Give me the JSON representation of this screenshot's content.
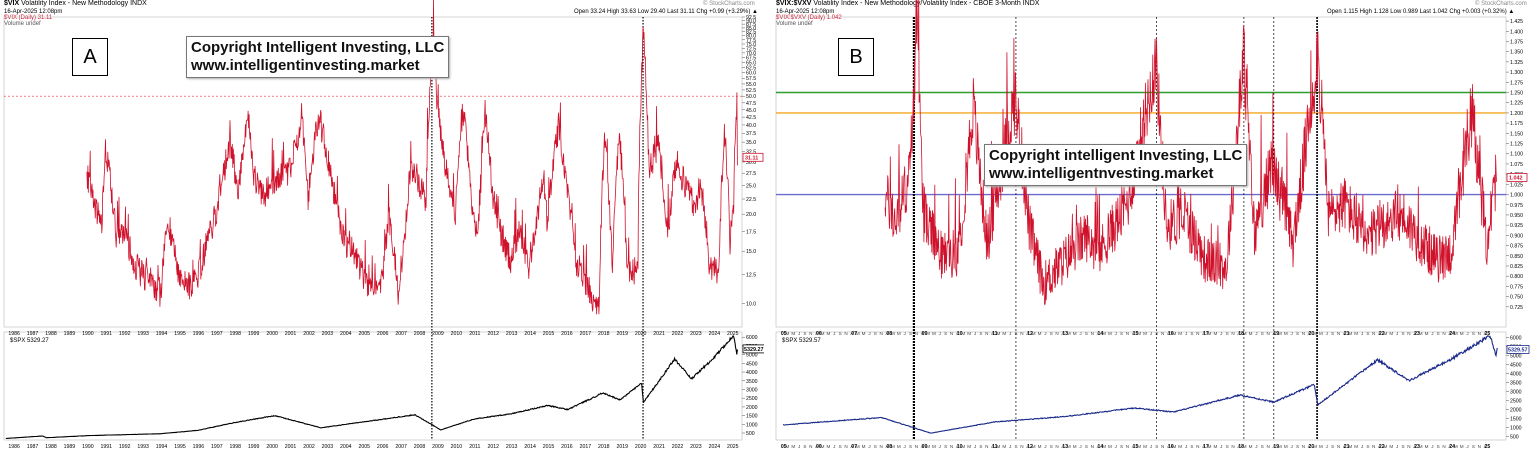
{
  "colors": {
    "vix": "#d0112b",
    "spx_a": "#000000",
    "spx_b": "#1a2a8a",
    "green_level": "#2e9e2e",
    "orange_level": "#f5a623",
    "purple_level": "#6a6ad0",
    "ref_dashed": "#e53935"
  },
  "panels": [
    {
      "id": "A",
      "title_symbol": "$VIX",
      "title_desc": "Volatility Index - New Methodology",
      "title_exchange": "INDX",
      "date_line": "16-Apr-2025 12:08pm",
      "ohlc": "Open 33.24  High 33.63  Low 29.40  Last 31.11  Chg +0.99 (+3.29%) ▲",
      "watermark": "© StockCharts.com",
      "legend_main": "$VIX (Daily) 31.11",
      "legend_vol": "Volume undef",
      "legend_lower": "$SPX 5329.27",
      "letter": "A",
      "copyright_line1": "Copyright Intelligent Investing, LLC",
      "copyright_line2": "www.intelligentinvesting.market",
      "last_tag_upper": "31.11",
      "last_tag_lower": "5329.27"
    },
    {
      "id": "B",
      "title_symbol": "$VIX:$VXV",
      "title_desc": "Volatility Index - New Methodology/Volatility Index - CBOE 3-Month",
      "title_exchange": "INDX",
      "date_line": "16-Apr-2025 12:08pm",
      "ohlc": "Open 1.115  High 1.128  Low 0.989  Last 1.042  Chg +0.003 (+0.32%) ▲",
      "watermark": "© StockCharts.com",
      "legend_main": "$VIX:$VXV (Daily) 1.042",
      "legend_vol": "Volume undef",
      "legend_lower": "$SPX 5329.57",
      "letter": "B",
      "copyright_line1": "Copyright intelligent Investing, LLC",
      "copyright_line2": "www.intelligentnvesting.market",
      "last_tag_upper": "1.042",
      "last_tag_lower": "5329.57"
    }
  ],
  "chart_data": [
    {
      "type": "line",
      "panel": "A",
      "series": [
        {
          "name": "$VIX (Daily)",
          "last": 31.11
        }
      ],
      "y_scale": "log",
      "ylim": [
        9.0,
        92.5
      ],
      "yticks": [
        "10.0",
        "12.5",
        "15.0",
        "17.5",
        "20.0",
        "22.5",
        "25.0",
        "27.5",
        "30.0",
        "32.5",
        "35.0",
        "37.5",
        "40.0",
        "42.5",
        "45.0",
        "47.5",
        "50.0",
        "52.5",
        "55.0",
        "57.5",
        "60.0",
        "62.5",
        "65.0",
        "67.5",
        "70.0",
        "72.5",
        "75.0",
        "77.5",
        "80.0",
        "82.5",
        "85.0",
        "87.5",
        "90.0",
        "92.5"
      ],
      "xticks": [
        "1986",
        "1987",
        "1988",
        "1989",
        "1990",
        "1991",
        "1992",
        "1993",
        "1994",
        "1995",
        "1996",
        "1997",
        "1998",
        "1999",
        "2000",
        "2001",
        "2002",
        "2003",
        "2004",
        "2005",
        "2006",
        "2007",
        "2008",
        "2009",
        "2010",
        "2011",
        "2012",
        "2013",
        "2014",
        "2015",
        "2016",
        "2017",
        "2018",
        "2019",
        "2020",
        "2021",
        "2022",
        "2023",
        "2024",
        "2025"
      ],
      "reference_line": 50.0,
      "vix_points": [
        [
          1990.0,
          26
        ],
        [
          1990.8,
          18
        ],
        [
          1991.0,
          33
        ],
        [
          1991.6,
          17
        ],
        [
          1992.0,
          18
        ],
        [
          1992.5,
          14
        ],
        [
          1993.0,
          12.5
        ],
        [
          1993.5,
          12
        ],
        [
          1994.0,
          10.5
        ],
        [
          1994.4,
          19
        ],
        [
          1995.0,
          12.5
        ],
        [
          1995.5,
          11.5
        ],
        [
          1996.0,
          12
        ],
        [
          1996.6,
          17
        ],
        [
          1997.0,
          20
        ],
        [
          1997.8,
          35
        ],
        [
          1998.2,
          22
        ],
        [
          1998.7,
          44
        ],
        [
          1999.0,
          28
        ],
        [
          1999.5,
          23
        ],
        [
          2000.0,
          25
        ],
        [
          2000.5,
          27
        ],
        [
          2001.0,
          28
        ],
        [
          2001.7,
          41
        ],
        [
          2002.0,
          23
        ],
        [
          2002.6,
          43
        ],
        [
          2003.0,
          32
        ],
        [
          2003.5,
          22
        ],
        [
          2004.0,
          16
        ],
        [
          2004.5,
          15
        ],
        [
          2005.0,
          12.5
        ],
        [
          2005.5,
          11
        ],
        [
          2006.0,
          12
        ],
        [
          2006.4,
          19
        ],
        [
          2006.9,
          11
        ],
        [
          2007.2,
          16
        ],
        [
          2007.6,
          29
        ],
        [
          2008.0,
          26
        ],
        [
          2008.4,
          22
        ],
        [
          2008.8,
          80
        ],
        [
          2009.0,
          45
        ],
        [
          2009.5,
          28
        ],
        [
          2010.0,
          20
        ],
        [
          2010.4,
          45
        ],
        [
          2010.9,
          20
        ],
        [
          2011.3,
          17
        ],
        [
          2011.6,
          45
        ],
        [
          2012.0,
          23
        ],
        [
          2012.5,
          17
        ],
        [
          2013.0,
          14
        ],
        [
          2013.5,
          18
        ],
        [
          2014.0,
          13
        ],
        [
          2014.8,
          26
        ],
        [
          2015.0,
          18
        ],
        [
          2015.6,
          40
        ],
        [
          2016.0,
          25
        ],
        [
          2016.5,
          14
        ],
        [
          2017.0,
          12
        ],
        [
          2017.8,
          9.2
        ],
        [
          2018.1,
          37
        ],
        [
          2018.5,
          13
        ],
        [
          2018.9,
          36
        ],
        [
          2019.3,
          13
        ],
        [
          2019.9,
          13
        ],
        [
          2020.2,
          82
        ],
        [
          2020.5,
          28
        ],
        [
          2021.0,
          34
        ],
        [
          2021.5,
          17
        ],
        [
          2022.0,
          30
        ],
        [
          2022.5,
          25
        ],
        [
          2023.0,
          21
        ],
        [
          2023.3,
          26
        ],
        [
          2023.8,
          13
        ],
        [
          2024.3,
          13
        ],
        [
          2024.6,
          38
        ],
        [
          2024.9,
          16
        ],
        [
          2025.1,
          22
        ],
        [
          2025.28,
          52
        ],
        [
          2025.3,
          31
        ]
      ],
      "lower_series": {
        "name": "$SPX",
        "last": 5329.27,
        "yticks": [
          "500",
          "1000",
          "1500",
          "2000",
          "2500",
          "3000",
          "3500",
          "4000",
          "4500",
          "5000",
          "5500",
          "6000"
        ],
        "ylim": [
          100,
          6300
        ]
      }
    },
    {
      "type": "line",
      "panel": "B",
      "series": [
        {
          "name": "$VIX:$VXV (Daily)",
          "last": 1.042
        }
      ],
      "ylim": [
        0.7,
        1.435
      ],
      "yticks": [
        "0.725",
        "0.750",
        "0.775",
        "0.800",
        "0.825",
        "0.850",
        "0.875",
        "0.900",
        "0.925",
        "0.950",
        "0.975",
        "1.000",
        "1.025",
        "1.050",
        "1.075",
        "1.100",
        "1.125",
        "1.150",
        "1.175",
        "1.200",
        "1.225",
        "1.250",
        "1.275",
        "1.300",
        "1.325",
        "1.350",
        "1.375",
        "1.400",
        "1.425"
      ],
      "xticks": [
        "05",
        "06",
        "07",
        "08",
        "09",
        "10",
        "11",
        "12",
        "13",
        "14",
        "15",
        "16",
        "17",
        "18",
        "19",
        "20",
        "21",
        "22",
        "23",
        "24",
        "25"
      ],
      "horizontal_levels": [
        {
          "value": 1.25,
          "color": "green"
        },
        {
          "value": 1.2,
          "color": "orange"
        },
        {
          "value": 1.0,
          "color": "purple"
        }
      ],
      "ratio_points": [
        [
          2007.9,
          1.0
        ],
        [
          2008.2,
          0.93
        ],
        [
          2008.6,
          1.05
        ],
        [
          2008.8,
          1.4
        ],
        [
          2009.0,
          0.95
        ],
        [
          2009.5,
          0.85
        ],
        [
          2010.0,
          0.86
        ],
        [
          2010.4,
          1.22
        ],
        [
          2010.8,
          0.88
        ],
        [
          2011.6,
          1.24
        ],
        [
          2012.0,
          0.92
        ],
        [
          2012.4,
          0.78
        ],
        [
          2013.0,
          0.84
        ],
        [
          2013.6,
          0.9
        ],
        [
          2014.0,
          0.86
        ],
        [
          2014.8,
          0.98
        ],
        [
          2015.6,
          1.33
        ],
        [
          2015.9,
          0.92
        ],
        [
          2016.4,
          0.95
        ],
        [
          2017.0,
          0.84
        ],
        [
          2017.6,
          0.82
        ],
        [
          2018.1,
          1.34
        ],
        [
          2018.4,
          0.9
        ],
        [
          2018.9,
          1.08
        ],
        [
          2019.5,
          0.88
        ],
        [
          2020.2,
          1.35
        ],
        [
          2020.5,
          0.95
        ],
        [
          2021.0,
          0.98
        ],
        [
          2021.6,
          0.88
        ],
        [
          2022.0,
          0.93
        ],
        [
          2022.6,
          0.95
        ],
        [
          2023.0,
          0.9
        ],
        [
          2023.6,
          0.84
        ],
        [
          2024.0,
          0.86
        ],
        [
          2024.6,
          1.2
        ],
        [
          2025.0,
          0.88
        ],
        [
          2025.28,
          1.05
        ]
      ],
      "lower_series": {
        "name": "$SPX",
        "last": 5329.57,
        "yticks": [
          "500",
          "1000",
          "1500",
          "2000",
          "2500",
          "3000",
          "3500",
          "4000",
          "4500",
          "5000",
          "5500",
          "6000"
        ],
        "ylim": [
          300,
          6300
        ]
      }
    }
  ]
}
